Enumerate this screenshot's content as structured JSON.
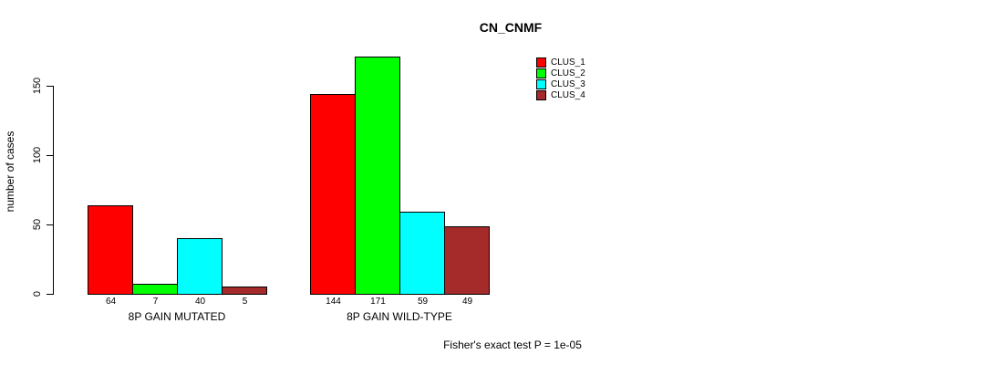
{
  "chart_data": {
    "type": "bar",
    "title": "CN_CNMF",
    "ylabel": "number of cases",
    "xlabel": "",
    "categories": [
      "8P GAIN MUTATED",
      "8P GAIN WILD-TYPE"
    ],
    "series": [
      {
        "name": "CLUS_1",
        "color": "#FF0000",
        "values": [
          64,
          144
        ]
      },
      {
        "name": "CLUS_2",
        "color": "#00FF00",
        "values": [
          7,
          171
        ]
      },
      {
        "name": "CLUS_3",
        "color": "#00FFFF",
        "values": [
          40,
          59
        ]
      },
      {
        "name": "CLUS_4",
        "color": "#A52A2A",
        "values": [
          5,
          49
        ]
      }
    ],
    "yticks": [
      0,
      50,
      100,
      150
    ],
    "ylim": [
      0,
      171
    ],
    "grid": false,
    "legend_position": "top-right",
    "bar_value_labels": true,
    "annotation": "Fisher's exact test P = 1e-05"
  }
}
